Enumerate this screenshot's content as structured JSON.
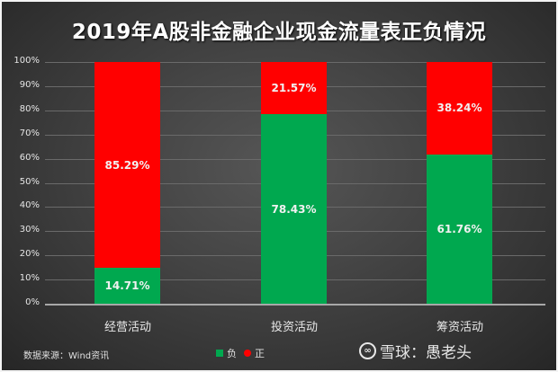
{
  "title": "2019年A股非金融企业现金流量表正负情况",
  "y_axis": {
    "ticks": [
      "100%",
      "90%",
      "80%",
      "70%",
      "60%",
      "50%",
      "40%",
      "30%",
      "20%",
      "10%",
      "0%"
    ]
  },
  "categories": [
    "经营活动",
    "投资活动",
    "筹资活动"
  ],
  "bars": [
    {
      "category": "经营活动",
      "neg": 14.71,
      "pos": 85.29,
      "neg_label": "14.71%",
      "pos_label": "85.29%"
    },
    {
      "category": "投资活动",
      "neg": 78.43,
      "pos": 21.57,
      "neg_label": "78.43%",
      "pos_label": "21.57%"
    },
    {
      "category": "筹资活动",
      "neg": 61.76,
      "pos": 38.24,
      "neg_label": "61.76%",
      "pos_label": "38.24%"
    }
  ],
  "legend": {
    "neg_label": "负",
    "pos_label": "正"
  },
  "source": "数据来源：Wind资讯",
  "watermark": {
    "logo_icon": "xueqiu-logo-icon",
    "text": "雪球：愚老头"
  },
  "colors": {
    "neg": "#00a84f",
    "pos": "#ff0000",
    "background": "#3a3a3a"
  },
  "chart_data": {
    "type": "bar",
    "stacked": true,
    "percent": true,
    "title": "2019年A股非金融企业现金流量表正负情况",
    "categories": [
      "经营活动",
      "投资活动",
      "筹资活动"
    ],
    "series": [
      {
        "name": "负",
        "color": "#00a84f",
        "values": [
          14.71,
          78.43,
          61.76
        ]
      },
      {
        "name": "正",
        "color": "#ff0000",
        "values": [
          85.29,
          21.57,
          38.24
        ]
      }
    ],
    "xlabel": "",
    "ylabel": "",
    "ylim": [
      0,
      100
    ],
    "yticks": [
      "0%",
      "10%",
      "20%",
      "30%",
      "40%",
      "50%",
      "60%",
      "70%",
      "80%",
      "90%",
      "100%"
    ],
    "grid": true,
    "legend_position": "bottom",
    "annotations": [
      "数据来源：Wind资讯",
      "雪球：愚老头"
    ]
  }
}
